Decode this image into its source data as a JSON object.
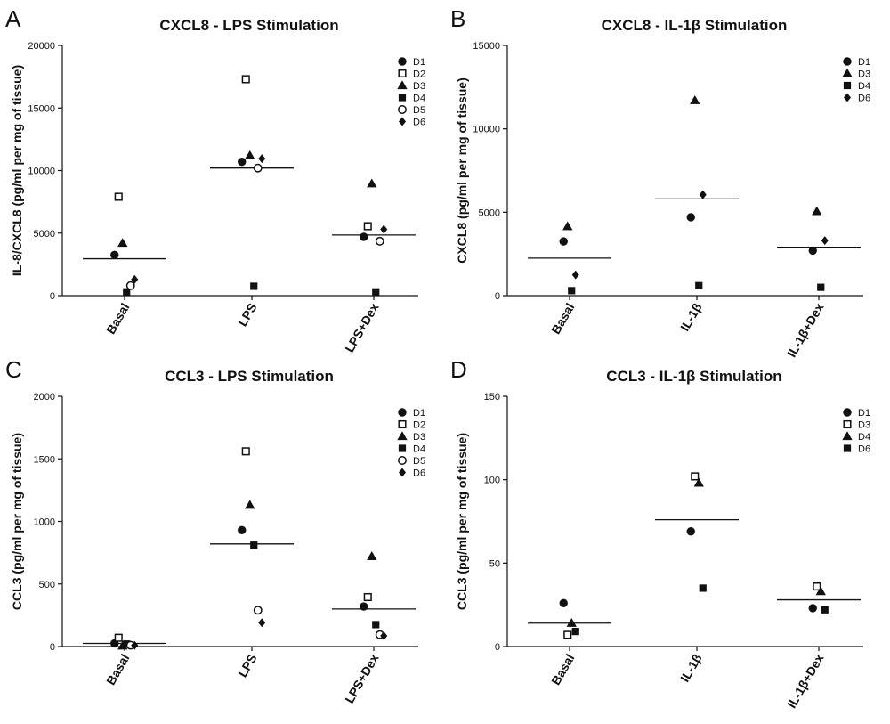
{
  "chart_data": [
    {
      "type": "scatter",
      "letter": "A",
      "title": "CXCL8 - LPS Stimulation",
      "xlabel": "",
      "ylabel": "IL-8/CXCL8 (pg/ml per mg of tissue)",
      "categories": [
        "Basal",
        "LPS",
        "LPS+Dex"
      ],
      "ylim": [
        0,
        20000
      ],
      "yticks": [
        0,
        5000,
        10000,
        15000,
        20000
      ],
      "legend_position": "top-right",
      "series": [
        {
          "name": "D1",
          "marker": "circle-filled",
          "values": [
            3250,
            10700,
            4700
          ]
        },
        {
          "name": "D2",
          "marker": "square-open",
          "values": [
            7900,
            17300,
            5550
          ]
        },
        {
          "name": "D3",
          "marker": "triangle-filled",
          "values": [
            4200,
            11200,
            8950
          ]
        },
        {
          "name": "D4",
          "marker": "square-filled",
          "values": [
            300,
            750,
            300
          ]
        },
        {
          "name": "D5",
          "marker": "circle-open",
          "values": [
            800,
            10200,
            4350
          ]
        },
        {
          "name": "D6",
          "marker": "diamond-filled",
          "values": [
            1300,
            10950,
            5300
          ]
        }
      ],
      "means": [
        2950,
        10200,
        4850
      ]
    },
    {
      "type": "scatter",
      "letter": "B",
      "title": "CXCL8 - IL-1β Stimulation",
      "xlabel": "",
      "ylabel": "CXCL8 (pg/ml per mg of tissue)",
      "categories": [
        "Basal",
        "IL-1β",
        "IL-1β+Dex"
      ],
      "ylim": [
        0,
        15000
      ],
      "yticks": [
        0,
        5000,
        10000,
        15000
      ],
      "legend_position": "top-right",
      "series": [
        {
          "name": "D1",
          "marker": "circle-filled",
          "values": [
            3250,
            4700,
            2700
          ]
        },
        {
          "name": "D3",
          "marker": "triangle-filled",
          "values": [
            4150,
            11700,
            5050
          ]
        },
        {
          "name": "D4",
          "marker": "square-filled",
          "values": [
            300,
            600,
            500
          ]
        },
        {
          "name": "D6",
          "marker": "diamond-filled",
          "values": [
            1250,
            6050,
            3300
          ]
        }
      ],
      "means": [
        2250,
        5800,
        2900
      ]
    },
    {
      "type": "scatter",
      "letter": "C",
      "title": "CCL3 - LPS Stimulation",
      "xlabel": "",
      "ylabel": "CCL3 (pg/ml per mg of tissue)",
      "categories": [
        "Basal",
        "LPS",
        "LPS+Dex"
      ],
      "ylim": [
        0,
        2000
      ],
      "yticks": [
        0,
        500,
        1000,
        1500,
        2000
      ],
      "legend_position": "top-right",
      "series": [
        {
          "name": "D1",
          "marker": "circle-filled",
          "values": [
            25,
            930,
            320
          ]
        },
        {
          "name": "D2",
          "marker": "square-open",
          "values": [
            70,
            1560,
            395
          ]
        },
        {
          "name": "D3",
          "marker": "triangle-filled",
          "values": [
            5,
            1130,
            720
          ]
        },
        {
          "name": "D4",
          "marker": "square-filled",
          "values": [
            20,
            810,
            175
          ]
        },
        {
          "name": "D5",
          "marker": "circle-open",
          "values": [
            10,
            290,
            95
          ]
        },
        {
          "name": "D6",
          "marker": "diamond-filled",
          "values": [
            10,
            190,
            85
          ]
        }
      ],
      "means": [
        25,
        820,
        300
      ]
    },
    {
      "type": "scatter",
      "letter": "D",
      "title": "CCL3 - IL-1β Stimulation",
      "xlabel": "",
      "ylabel": "CCL3 (pg/ml per mg of tissue)",
      "categories": [
        "Basal",
        "IL-1β",
        "IL-1β+Dex"
      ],
      "ylim": [
        0,
        150
      ],
      "yticks": [
        0,
        50,
        100,
        150
      ],
      "legend_position": "top-right",
      "series": [
        {
          "name": "D1",
          "marker": "circle-filled",
          "values": [
            26,
            69,
            23
          ]
        },
        {
          "name": "D3",
          "marker": "square-open",
          "values": [
            7,
            102,
            36
          ]
        },
        {
          "name": "D4",
          "marker": "triangle-filled",
          "values": [
            14,
            98,
            33
          ]
        },
        {
          "name": "D6",
          "marker": "square-filled",
          "values": [
            9,
            35,
            22
          ]
        }
      ],
      "means": [
        14,
        76,
        28
      ]
    }
  ]
}
